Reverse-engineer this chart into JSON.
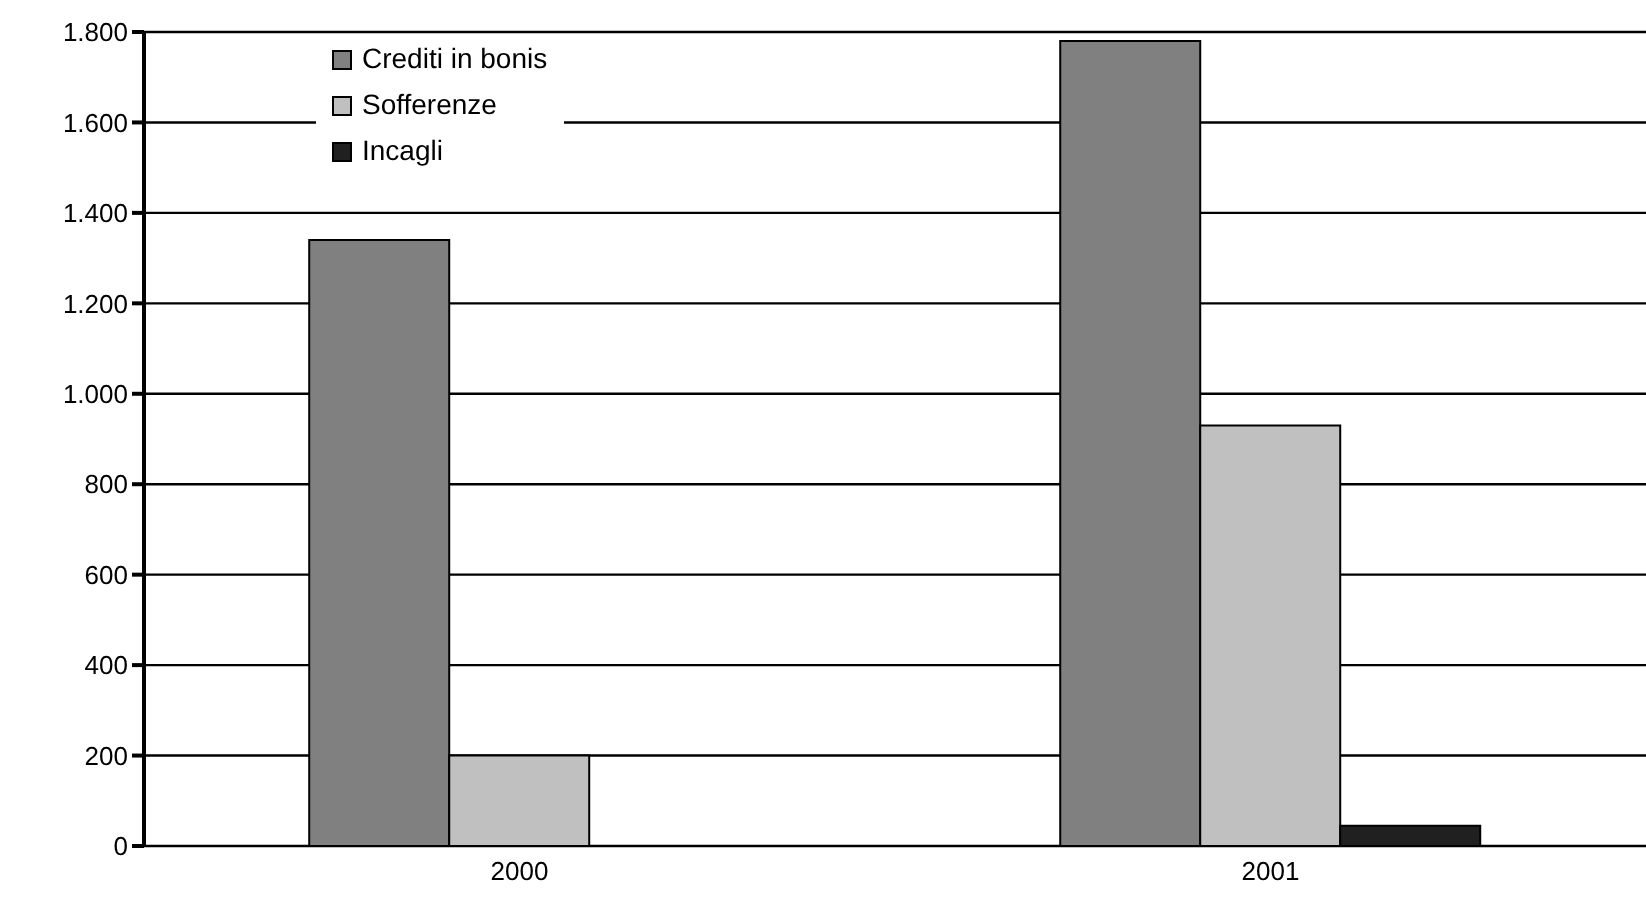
{
  "chart_data": {
    "type": "bar",
    "categories": [
      "2000",
      "2001"
    ],
    "series": [
      {
        "name": "Crediti in bonis",
        "color": "#808080",
        "values": [
          1340,
          1780
        ]
      },
      {
        "name": "Sofferenze",
        "color": "#c0c0c0",
        "values": [
          200,
          930
        ]
      },
      {
        "name": "Incagli",
        "color": "#202020",
        "values": [
          0,
          45
        ]
      }
    ],
    "ylim": [
      0,
      1800
    ],
    "yticks": [
      0,
      200,
      400,
      600,
      800,
      {
        "value": 1000,
        "label": "1.000"
      },
      {
        "value": 1200,
        "label": "1.200"
      },
      {
        "value": 1400,
        "label": "1.400"
      },
      {
        "value": 1600,
        "label": "1.600"
      },
      {
        "value": 1800,
        "label": "1.800"
      }
    ],
    "grid": "y",
    "legend": "top left"
  }
}
